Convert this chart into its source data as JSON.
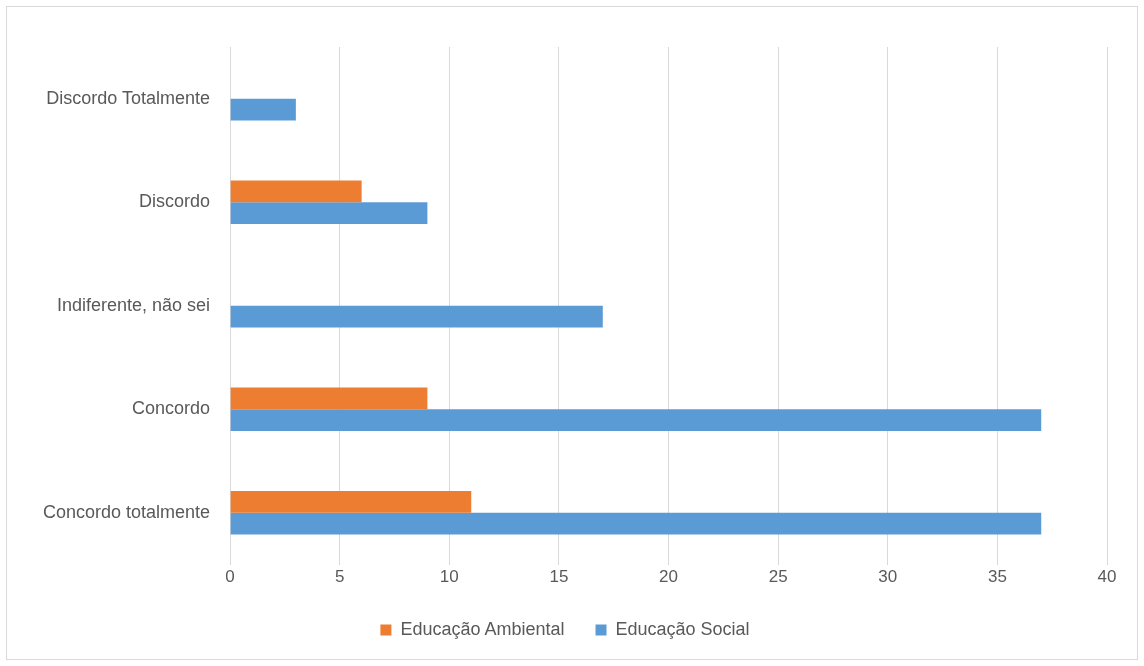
{
  "chart_data": {
    "type": "bar",
    "orientation": "horizontal",
    "categories": [
      "Discordo Totalmente",
      "Discordo",
      "Indiferente, não sei",
      "Concordo",
      "Concordo totalmente"
    ],
    "series": [
      {
        "name": "Educação Ambiental",
        "color": "#ed7d31",
        "values": [
          0,
          6,
          0,
          9,
          11
        ]
      },
      {
        "name": "Educação Social",
        "color": "#5b9bd5",
        "values": [
          3,
          9,
          17,
          37,
          37
        ]
      }
    ],
    "xlim": [
      0,
      40
    ],
    "xticks": [
      0,
      5,
      10,
      15,
      20,
      25,
      30,
      35,
      40
    ],
    "grid": "x",
    "legend": "bottom"
  }
}
